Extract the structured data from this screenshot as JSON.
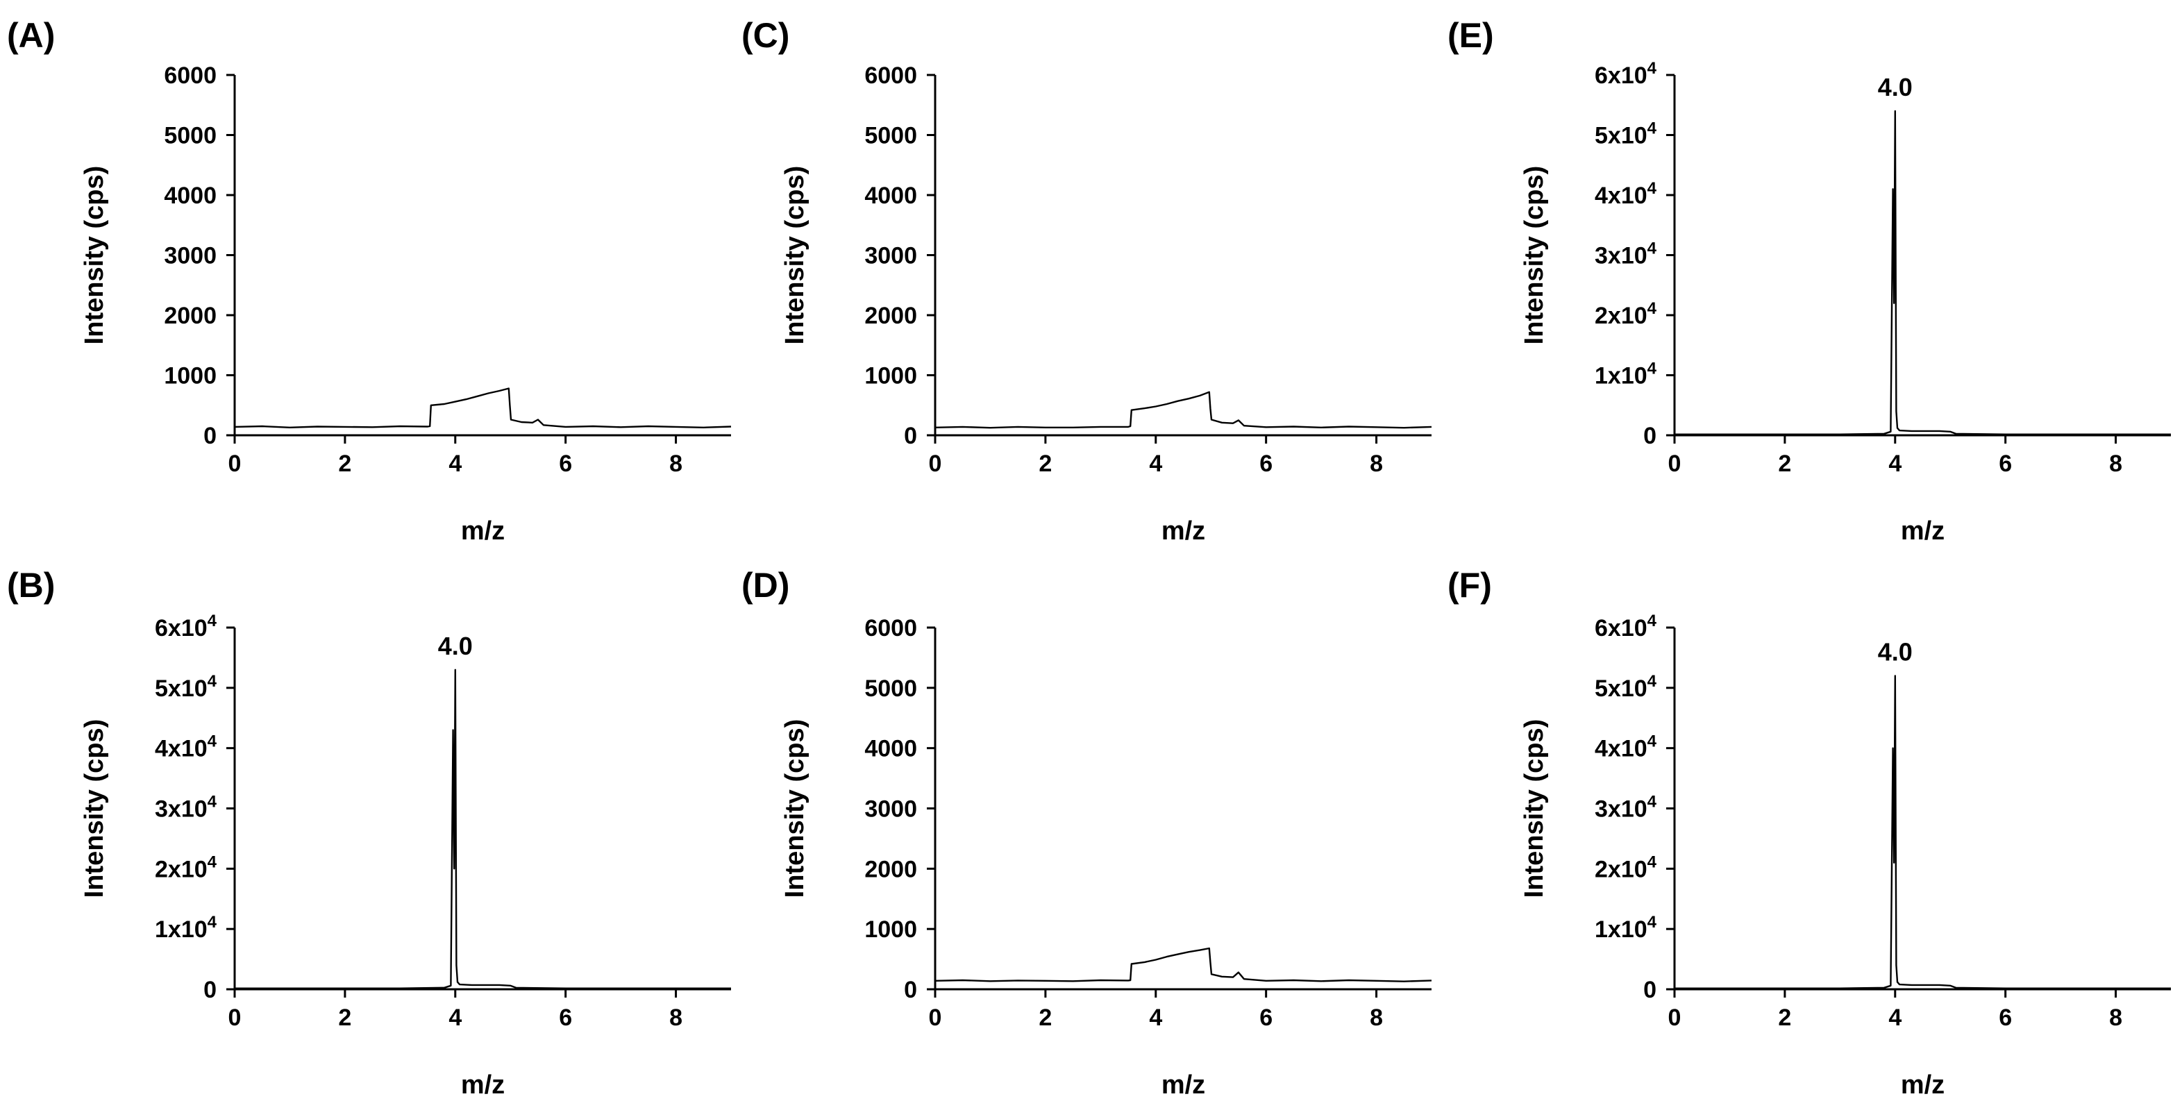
{
  "chart_data": [
    {
      "panel": "(A)",
      "type": "line",
      "xlabel": "m/z",
      "ylabel": "Intensity (cps)",
      "xlim": [
        0,
        9
      ],
      "ylim": [
        0,
        6000
      ],
      "xticks": [
        0,
        2,
        4,
        6,
        8
      ],
      "xtick_labels": [
        "0",
        "2",
        "4",
        "6",
        "8"
      ],
      "yticks": [
        0,
        1000,
        2000,
        3000,
        4000,
        5000,
        6000
      ],
      "ytick_labels": [
        "0",
        "1000",
        "2000",
        "3000",
        "4000",
        "5000",
        "6000"
      ],
      "series": [
        {
          "name": "signal",
          "x": [
            0,
            0.5,
            1,
            1.5,
            2,
            2.5,
            3,
            3.5,
            3.54,
            3.56,
            3.8,
            4.0,
            4.2,
            4.4,
            4.6,
            4.8,
            4.97,
            4.99,
            5.01,
            5.2,
            5.4,
            5.5,
            5.6,
            6,
            6.5,
            7,
            7.5,
            8,
            8.5,
            9
          ],
          "y": [
            140,
            150,
            130,
            145,
            140,
            135,
            150,
            145,
            150,
            500,
            520,
            560,
            600,
            650,
            700,
            740,
            780,
            500,
            260,
            220,
            210,
            260,
            170,
            140,
            150,
            135,
            150,
            140,
            130,
            145
          ]
        }
      ]
    },
    {
      "panel": "(B)",
      "type": "line",
      "xlabel": "m/z",
      "ylabel": "Intensity (cps)",
      "xlim": [
        0,
        9
      ],
      "ylim": [
        0,
        60000
      ],
      "xticks": [
        0,
        2,
        4,
        6,
        8
      ],
      "xtick_labels": [
        "0",
        "2",
        "4",
        "6",
        "8"
      ],
      "yticks": [
        0,
        10000,
        20000,
        30000,
        40000,
        50000,
        60000
      ],
      "ytick_labels": [
        {
          "text": "0"
        },
        {
          "mantissa": "1",
          "times": "x10",
          "exp": "4"
        },
        {
          "mantissa": "2",
          "times": "x10",
          "exp": "4"
        },
        {
          "mantissa": "3",
          "times": "x10",
          "exp": "4"
        },
        {
          "mantissa": "4",
          "times": "x10",
          "exp": "4"
        },
        {
          "mantissa": "5",
          "times": "x10",
          "exp": "4"
        },
        {
          "mantissa": "6",
          "times": "x10",
          "exp": "4"
        }
      ],
      "annotations": [
        {
          "text": "4.0",
          "x": 4.0,
          "y": 53000
        }
      ],
      "series": [
        {
          "name": "signal",
          "x": [
            0,
            1,
            2,
            3,
            3.8,
            3.92,
            3.96,
            3.98,
            4.0,
            4.02,
            4.04,
            4.08,
            4.3,
            4.8,
            5.0,
            5.1,
            6,
            7,
            8,
            9
          ],
          "y": [
            150,
            150,
            150,
            150,
            250,
            600,
            43000,
            20000,
            53000,
            4000,
            1200,
            800,
            700,
            700,
            600,
            250,
            150,
            150,
            150,
            150
          ]
        }
      ]
    },
    {
      "panel": "(C)",
      "type": "line",
      "xlabel": "m/z",
      "ylabel": "Intensity (cps)",
      "xlim": [
        0,
        9
      ],
      "ylim": [
        0,
        6000
      ],
      "xticks": [
        0,
        2,
        4,
        6,
        8
      ],
      "xtick_labels": [
        "0",
        "2",
        "4",
        "6",
        "8"
      ],
      "yticks": [
        0,
        1000,
        2000,
        3000,
        4000,
        5000,
        6000
      ],
      "ytick_labels": [
        "0",
        "1000",
        "2000",
        "3000",
        "4000",
        "5000",
        "6000"
      ],
      "series": [
        {
          "name": "signal",
          "x": [
            0,
            0.5,
            1,
            1.5,
            2,
            2.5,
            3,
            3.5,
            3.54,
            3.56,
            3.8,
            4.0,
            4.2,
            4.4,
            4.6,
            4.8,
            4.97,
            4.99,
            5.01,
            5.2,
            5.4,
            5.5,
            5.6,
            6,
            6.5,
            7,
            7.5,
            8,
            8.5,
            9
          ],
          "y": [
            130,
            140,
            125,
            140,
            130,
            130,
            140,
            140,
            150,
            420,
            450,
            480,
            520,
            570,
            610,
            660,
            720,
            450,
            260,
            210,
            200,
            250,
            160,
            135,
            145,
            130,
            145,
            135,
            125,
            140
          ]
        }
      ]
    },
    {
      "panel": "(D)",
      "type": "line",
      "xlabel": "m/z",
      "ylabel": "Intensity (cps)",
      "xlim": [
        0,
        9
      ],
      "ylim": [
        0,
        6000
      ],
      "xticks": [
        0,
        2,
        4,
        6,
        8
      ],
      "xtick_labels": [
        "0",
        "2",
        "4",
        "6",
        "8"
      ],
      "yticks": [
        0,
        1000,
        2000,
        3000,
        4000,
        5000,
        6000
      ],
      "ytick_labels": [
        "0",
        "1000",
        "2000",
        "3000",
        "4000",
        "5000",
        "6000"
      ],
      "series": [
        {
          "name": "signal",
          "x": [
            0,
            0.5,
            1,
            1.5,
            2,
            2.5,
            3,
            3.5,
            3.54,
            3.56,
            3.8,
            4.0,
            4.2,
            4.4,
            4.6,
            4.8,
            4.97,
            4.99,
            5.01,
            5.2,
            5.4,
            5.5,
            5.6,
            6,
            6.5,
            7,
            7.5,
            8,
            8.5,
            9
          ],
          "y": [
            140,
            150,
            135,
            145,
            140,
            135,
            150,
            145,
            150,
            420,
            450,
            490,
            540,
            580,
            620,
            650,
            680,
            450,
            250,
            210,
            200,
            280,
            170,
            140,
            150,
            135,
            150,
            140,
            130,
            145
          ]
        }
      ]
    },
    {
      "panel": "(E)",
      "type": "line",
      "xlabel": "m/z",
      "ylabel": "Intensity (cps)",
      "xlim": [
        0,
        9
      ],
      "ylim": [
        0,
        60000
      ],
      "xticks": [
        0,
        2,
        4,
        6,
        8
      ],
      "xtick_labels": [
        "0",
        "2",
        "4",
        "6",
        "8"
      ],
      "yticks": [
        0,
        10000,
        20000,
        30000,
        40000,
        50000,
        60000
      ],
      "ytick_labels": [
        {
          "text": "0"
        },
        {
          "mantissa": "1",
          "times": "x10",
          "exp": "4"
        },
        {
          "mantissa": "2",
          "times": "x10",
          "exp": "4"
        },
        {
          "mantissa": "3",
          "times": "x10",
          "exp": "4"
        },
        {
          "mantissa": "4",
          "times": "x10",
          "exp": "4"
        },
        {
          "mantissa": "5",
          "times": "x10",
          "exp": "4"
        },
        {
          "mantissa": "6",
          "times": "x10",
          "exp": "4"
        }
      ],
      "annotations": [
        {
          "text": "4.0",
          "x": 4.0,
          "y": 54000
        }
      ],
      "series": [
        {
          "name": "signal",
          "x": [
            0,
            1,
            2,
            3,
            3.8,
            3.92,
            3.96,
            3.98,
            4.0,
            4.02,
            4.04,
            4.08,
            4.3,
            4.8,
            5.0,
            5.1,
            6,
            7,
            8,
            9
          ],
          "y": [
            150,
            150,
            150,
            150,
            250,
            600,
            41000,
            22000,
            54000,
            4000,
            1200,
            800,
            700,
            700,
            600,
            250,
            150,
            150,
            150,
            150
          ]
        }
      ]
    },
    {
      "panel": "(F)",
      "type": "line",
      "xlabel": "m/z",
      "ylabel": "Intensity (cps)",
      "xlim": [
        0,
        9
      ],
      "ylim": [
        0,
        60000
      ],
      "xticks": [
        0,
        2,
        4,
        6,
        8
      ],
      "xtick_labels": [
        "0",
        "2",
        "4",
        "6",
        "8"
      ],
      "yticks": [
        0,
        10000,
        20000,
        30000,
        40000,
        50000,
        60000
      ],
      "ytick_labels": [
        {
          "text": "0"
        },
        {
          "mantissa": "1",
          "times": "x10",
          "exp": "4"
        },
        {
          "mantissa": "2",
          "times": "x10",
          "exp": "4"
        },
        {
          "mantissa": "3",
          "times": "x10",
          "exp": "4"
        },
        {
          "mantissa": "4",
          "times": "x10",
          "exp": "4"
        },
        {
          "mantissa": "5",
          "times": "x10",
          "exp": "4"
        },
        {
          "mantissa": "6",
          "times": "x10",
          "exp": "4"
        }
      ],
      "annotations": [
        {
          "text": "4.0",
          "x": 4.0,
          "y": 52000
        }
      ],
      "series": [
        {
          "name": "signal",
          "x": [
            0,
            1,
            2,
            3,
            3.8,
            3.92,
            3.96,
            3.98,
            4.0,
            4.02,
            4.04,
            4.08,
            4.3,
            4.8,
            5.0,
            5.1,
            6,
            7,
            8,
            9
          ],
          "y": [
            150,
            150,
            150,
            150,
            250,
            600,
            40000,
            21000,
            52000,
            4000,
            1200,
            800,
            700,
            700,
            600,
            250,
            150,
            150,
            150,
            150
          ]
        }
      ]
    }
  ]
}
